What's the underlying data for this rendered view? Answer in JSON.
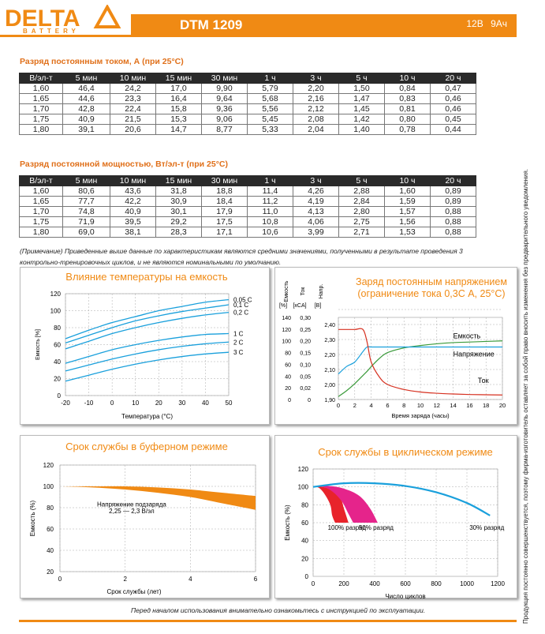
{
  "brand": {
    "name": "DELTA",
    "sub": "BATTERY"
  },
  "model": "DTM 1209",
  "voltage": "12В",
  "capacity": "9Ач",
  "current_title": "Разряд постоянным током, А (при 25°С)",
  "power_title": "Разряд постоянной мощностью, Вт/эл-т (при 25°С)",
  "table_header": [
    "В/эл-т",
    "5 мин",
    "10 мин",
    "15 мин",
    "30 мин",
    "1 ч",
    "3 ч",
    "5 ч",
    "10 ч",
    "20 ч"
  ],
  "current_rows": [
    [
      "1,60",
      "46,4",
      "24,2",
      "17,0",
      "9,90",
      "5,79",
      "2,20",
      "1,50",
      "0,84",
      "0,47"
    ],
    [
      "1,65",
      "44,6",
      "23,3",
      "16,4",
      "9,64",
      "5,68",
      "2,16",
      "1,47",
      "0,83",
      "0,46"
    ],
    [
      "1,70",
      "42,8",
      "22,4",
      "15,8",
      "9,36",
      "5,56",
      "2,12",
      "1,45",
      "0,81",
      "0,46"
    ],
    [
      "1,75",
      "40,9",
      "21,5",
      "15,3",
      "9,06",
      "5,45",
      "2,08",
      "1,42",
      "0,80",
      "0,45"
    ],
    [
      "1,80",
      "39,1",
      "20,6",
      "14,7",
      "8,77",
      "5,33",
      "2,04",
      "1,40",
      "0,78",
      "0,44"
    ]
  ],
  "power_rows": [
    [
      "1,60",
      "80,6",
      "43,6",
      "31,8",
      "18,8",
      "11,4",
      "4,26",
      "2,88",
      "1,60",
      "0,89"
    ],
    [
      "1,65",
      "77,7",
      "42,2",
      "30,9",
      "18,4",
      "11,2",
      "4,19",
      "2,84",
      "1,59",
      "0,89"
    ],
    [
      "1,70",
      "74,8",
      "40,9",
      "30,1",
      "17,9",
      "11,0",
      "4,13",
      "2,80",
      "1,57",
      "0,88"
    ],
    [
      "1,75",
      "71,9",
      "39,5",
      "29,2",
      "17,5",
      "10,8",
      "4,06",
      "2,75",
      "1,56",
      "0,88"
    ],
    [
      "1,80",
      "69,0",
      "38,1",
      "28,3",
      "17,1",
      "10,6",
      "3,99",
      "2,71",
      "1,53",
      "0,88"
    ]
  ],
  "note": "(Примечание) Приведенные выше данные по характеристикам являются средними значениями, полученными в результате проведения 3 контрольно-тренировочных циклов, и не являются номинальными по умолчанию.",
  "footer": "Перед началом использования внимательно ознакомьтесь с инструкцией по эксплуатации.",
  "side_note": "Продукция постоянно совершенствуется, поэтому фирма-изготовитель оставляет за собой право вносить изменения без предварительного уведомления.",
  "chart_data": [
    {
      "type": "line",
      "title": "Влияние температуры на емкость",
      "xlabel": "Температура (°С)",
      "ylabel": "Емкость [%]",
      "xlim": [
        -20,
        50
      ],
      "ylim": [
        0,
        120
      ],
      "x_ticks": [
        "-20",
        "-10",
        "0",
        "10",
        "20",
        "30",
        "40",
        "50"
      ],
      "y_ticks": [
        "0",
        "20",
        "40",
        "60",
        "80",
        "100",
        "120"
      ],
      "x": [
        -20,
        -10,
        0,
        10,
        20,
        30,
        40,
        50
      ],
      "series": [
        {
          "name": "0,05 С",
          "values": [
            67,
            77,
            86,
            93,
            100,
            105,
            110,
            113
          ]
        },
        {
          "name": "0,1 С",
          "values": [
            62,
            71,
            80,
            88,
            94,
            99,
            103,
            107
          ]
        },
        {
          "name": "0,2 С",
          "values": [
            55,
            64,
            73,
            80,
            86,
            91,
            95,
            98
          ]
        },
        {
          "name": "1 С",
          "values": [
            38,
            46,
            54,
            60,
            65,
            69,
            72,
            73
          ]
        },
        {
          "name": "2 С",
          "values": [
            29,
            36,
            43,
            49,
            54,
            58,
            61,
            63
          ]
        },
        {
          "name": "3 С",
          "values": [
            17,
            24,
            31,
            37,
            42,
            46,
            49,
            51
          ]
        }
      ]
    },
    {
      "type": "line",
      "title": "Заряд постоянным напряжением",
      "subtitle": "(ограничение тока 0,3С А, 25°С)",
      "xlabel": "Время заряда (часы)",
      "axis_headers": [
        "Емкость",
        "Ток",
        "Напр."
      ],
      "axis_units": [
        "[%]",
        "[xCA]",
        "[В]"
      ],
      "xlim": [
        0,
        20
      ],
      "x_ticks": [
        "0",
        "2",
        "4",
        "6",
        "8",
        "10",
        "12",
        "14",
        "16",
        "18",
        "20"
      ],
      "capacity_ticks": [
        "0",
        "20",
        "40",
        "60",
        "80",
        "100",
        "120",
        "140"
      ],
      "current_ticks": [
        "0",
        "0,02",
        "0,05",
        "0,10",
        "0,15",
        "0,20",
        "0,25",
        "0,30"
      ],
      "voltage_ticks": [
        "1,90",
        "2,00",
        "2,10",
        "2,20",
        "2,30",
        "2,40"
      ],
      "labels": {
        "capacity": "Емкость",
        "voltage": "Напряжение",
        "current": "Ток"
      },
      "x": [
        0,
        1,
        2,
        3,
        3.5,
        4,
        5,
        6,
        8,
        10,
        12,
        14,
        16,
        18,
        20
      ],
      "series": [
        {
          "name": "Емкость",
          "unit": "%",
          "values": [
            5,
            15,
            27,
            41,
            48,
            56,
            70,
            80,
            88,
            92,
            95,
            97,
            98,
            99,
            100
          ]
        },
        {
          "name": "Напряжение",
          "unit": "V",
          "values": [
            2.07,
            2.12,
            2.15,
            2.22,
            2.25,
            2.25,
            2.25,
            2.25,
            2.25,
            2.25,
            2.25,
            2.25,
            2.25,
            2.25,
            2.25
          ]
        },
        {
          "name": "Ток",
          "unit": "xCA",
          "values": [
            0.28,
            0.28,
            0.28,
            0.28,
            0.23,
            0.15,
            0.09,
            0.06,
            0.04,
            0.03,
            0.025,
            0.022,
            0.02,
            0.019,
            0.018
          ]
        }
      ]
    },
    {
      "type": "area",
      "title": "Срок службы в буферном режиме",
      "xlabel": "Срок службы (лет)",
      "ylabel": "Емкость (%)",
      "xlim": [
        0,
        6
      ],
      "ylim": [
        20,
        120
      ],
      "x_ticks": [
        "0",
        "2",
        "4",
        "6"
      ],
      "y_ticks": [
        "20",
        "40",
        "60",
        "80",
        "100",
        "120"
      ],
      "annotation": [
        "Напряжение подзаряда",
        "2,25 — 2,3 В/эл"
      ],
      "x": [
        0,
        1,
        2,
        3,
        4,
        5,
        6
      ],
      "upper": [
        100,
        100,
        100,
        99,
        97,
        94,
        91
      ],
      "lower": [
        100,
        99,
        97,
        94,
        90,
        84,
        78
      ]
    },
    {
      "type": "line",
      "title": "Срок службы в циклическом режиме",
      "xlabel": "Число циклов",
      "ylabel": "Емкость (%)",
      "xlim": [
        0,
        1200
      ],
      "ylim": [
        0,
        120
      ],
      "x_ticks": [
        "0",
        "200",
        "400",
        "600",
        "800",
        "1000",
        "1200"
      ],
      "y_ticks": [
        "0",
        "20",
        "40",
        "60",
        "80",
        "100",
        "120"
      ],
      "series": [
        {
          "name": "100% разряд",
          "color": "#e8232b",
          "values_x": [
            0,
            60,
            120,
            180,
            200,
            230
          ],
          "band": [
            [
              100,
              100,
              96,
              86,
              76,
              60
            ],
            [
              100,
              99,
              92,
              80,
              68,
              60
            ]
          ]
        },
        {
          "name": "50% разряд",
          "color": "#e5248b",
          "values_x": [
            0,
            100,
            200,
            300,
            370,
            420
          ],
          "band": [
            [
              100,
              101,
              98,
              90,
              76,
              60
            ],
            [
              100,
              100,
              95,
              84,
              70,
              60
            ]
          ]
        },
        {
          "name": "30% разряд",
          "color": "#1aa0dc",
          "values_x": [
            0,
            200,
            400,
            600,
            800,
            1000,
            1150
          ],
          "band": [
            [
              100,
              104,
              104,
              101,
              94,
              82,
              68
            ],
            [
              100,
              103,
              102,
              98,
              90,
              78,
              68
            ]
          ]
        }
      ]
    }
  ]
}
